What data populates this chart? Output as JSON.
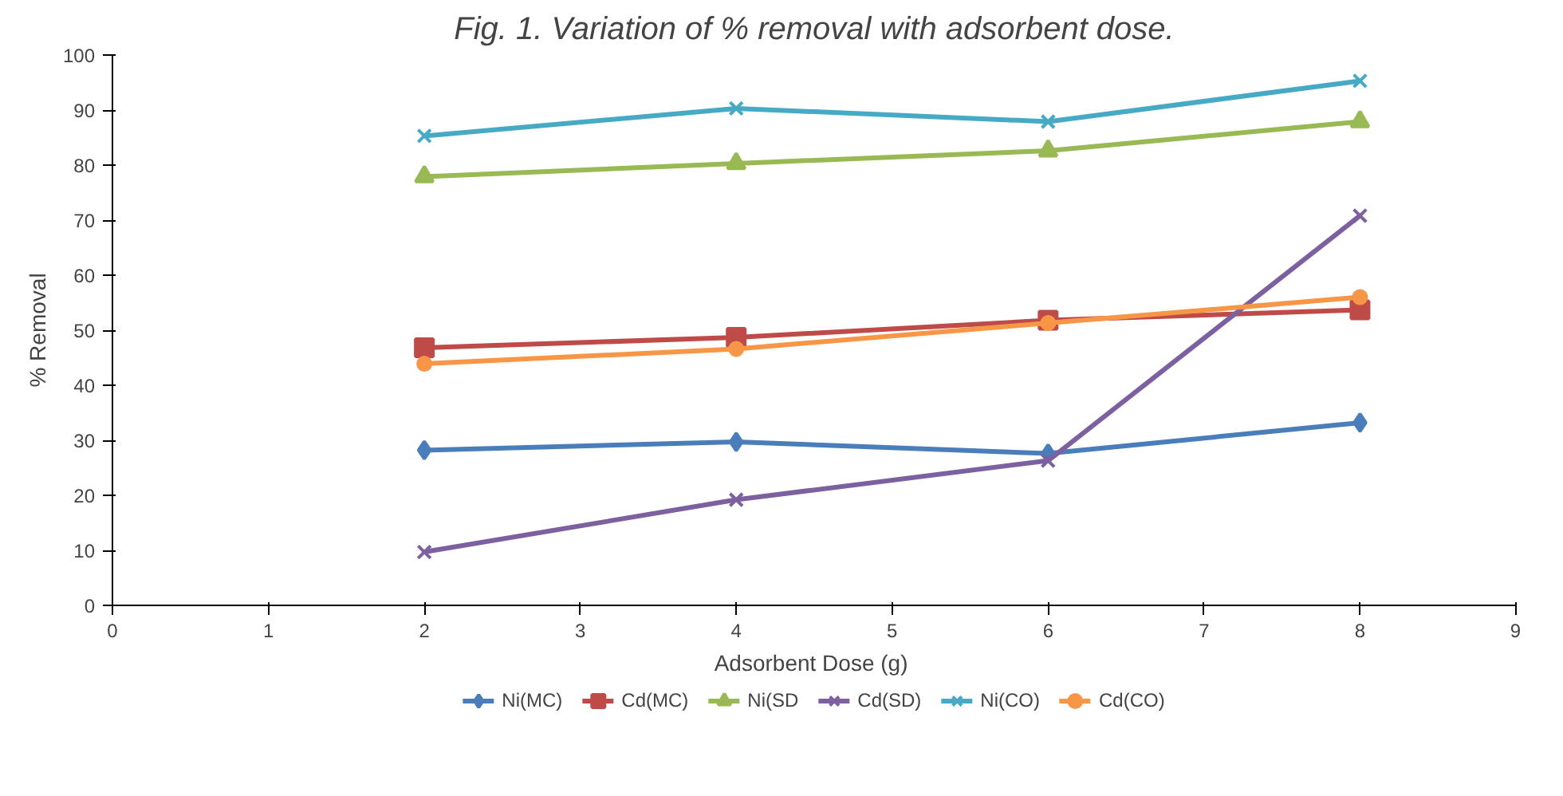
{
  "chart_data": {
    "type": "line",
    "title": "Fig. 1. Variation of % removal with adsorbent dose.",
    "xlabel": "Adsorbent  Dose (g)",
    "ylabel": "% Removal",
    "x": [
      2,
      4,
      6,
      8
    ],
    "xlim": [
      0,
      9
    ],
    "xticks": [
      0,
      1,
      2,
      3,
      4,
      5,
      6,
      7,
      8,
      9
    ],
    "ylim": [
      0,
      100
    ],
    "yticks": [
      0,
      10,
      20,
      30,
      40,
      50,
      60,
      70,
      80,
      90,
      100
    ],
    "grid": false,
    "legend": "bottom",
    "series": [
      {
        "name": "Ni(MC)",
        "color": "#4a7ebb",
        "marker": "diamond",
        "values": [
          28.2,
          29.7,
          27.6,
          33.2
        ]
      },
      {
        "name": "Cd(MC)",
        "color": "#be4b48",
        "marker": "square",
        "values": [
          46.8,
          48.7,
          51.8,
          53.7
        ]
      },
      {
        "name": "Ni(SD",
        "color": "#98b954",
        "marker": "triangle",
        "values": [
          77.9,
          80.3,
          82.6,
          87.9
        ]
      },
      {
        "name": "Cd(SD)",
        "color": "#7d60a0",
        "marker": "cross",
        "values": [
          9.7,
          19.2,
          26.3,
          70.8
        ]
      },
      {
        "name": "Ni(CO)",
        "color": "#46aac5",
        "marker": "cross",
        "values": [
          85.3,
          90.3,
          87.9,
          95.3
        ]
      },
      {
        "name": "Cd(CO)",
        "color": "#f79646",
        "marker": "circle",
        "values": [
          43.9,
          46.6,
          51.3,
          56.0
        ]
      }
    ]
  }
}
